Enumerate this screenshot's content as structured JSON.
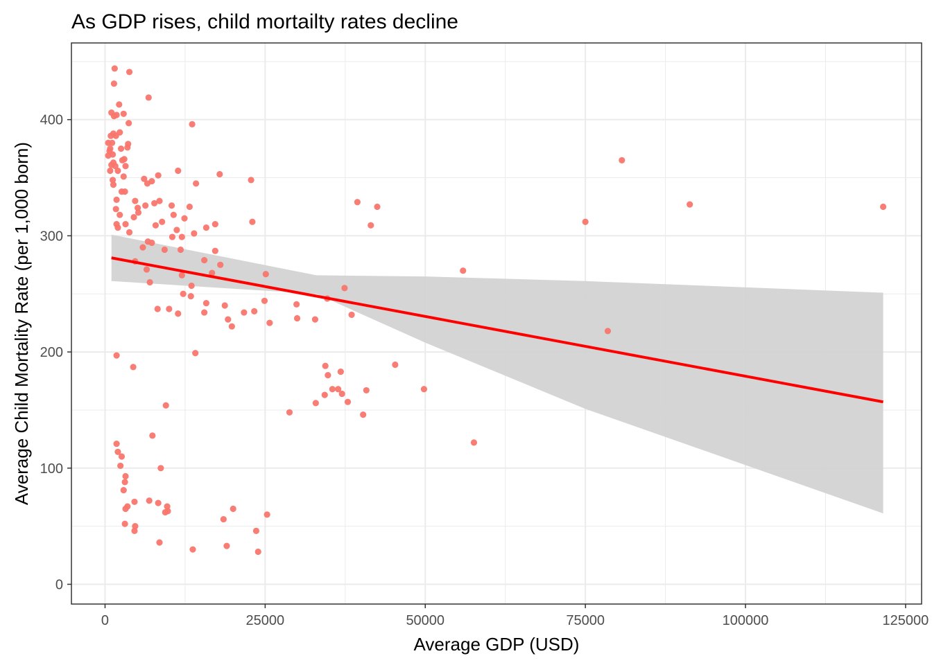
{
  "chart_data": {
    "type": "scatter",
    "title": "As GDP rises, child mortailty rates decline",
    "xlabel": "Average GDP (USD)",
    "ylabel": "Average Child Mortality Rate (per 1,000 born)",
    "xlim": [
      -5250,
      127500
    ],
    "ylim": [
      -17,
      466
    ],
    "x_ticks": [
      0,
      25000,
      50000,
      75000,
      100000,
      125000
    ],
    "x_tick_labels": [
      "0",
      "25000",
      "50000",
      "75000",
      "100000",
      "125000"
    ],
    "y_ticks": [
      0,
      100,
      200,
      300,
      400
    ],
    "y_tick_labels": [
      "0",
      "100",
      "200",
      "300",
      "400"
    ],
    "x_minor_ticks": [
      12500,
      37500,
      62500,
      87500,
      112500
    ],
    "y_minor_ticks": [
      50,
      150,
      250,
      350,
      450
    ],
    "grid": true,
    "legend": "none",
    "colors": {
      "points": "#F8766D",
      "trend_line": "#FF0000",
      "confidence_band": "#D3D3D3",
      "grid": "#EBEBEB",
      "panel_border": "#333333"
    },
    "trend": {
      "method": "linear",
      "x": [
        1000,
        121500
      ],
      "y": [
        281,
        157
      ],
      "ci_upper": [
        301,
        266,
        265,
        261,
        251
      ],
      "ci_lower": [
        261,
        250,
        208,
        151,
        61
      ],
      "ci_x": [
        1000,
        33000,
        50000,
        75000,
        121500
      ]
    },
    "series": [
      {
        "points": [
          [
            1500,
            444
          ],
          [
            3800,
            441
          ],
          [
            1400,
            431
          ],
          [
            6800,
            419
          ],
          [
            1000,
            406
          ],
          [
            1800,
            404
          ],
          [
            2900,
            405
          ],
          [
            2200,
            413
          ],
          [
            1400,
            403
          ],
          [
            3700,
            397
          ],
          [
            13600,
            396
          ],
          [
            900,
            386
          ],
          [
            1300,
            388
          ],
          [
            1700,
            386
          ],
          [
            2300,
            389
          ],
          [
            1100,
            380
          ],
          [
            500,
            380
          ],
          [
            800,
            375
          ],
          [
            2500,
            375
          ],
          [
            3600,
            379
          ],
          [
            700,
            373
          ],
          [
            3500,
            376
          ],
          [
            1200,
            370
          ],
          [
            3000,
            366
          ],
          [
            2700,
            365
          ],
          [
            500,
            369
          ],
          [
            1300,
            363
          ],
          [
            2000,
            356
          ],
          [
            3200,
            360
          ],
          [
            1000,
            361
          ],
          [
            800,
            356
          ],
          [
            1600,
            360
          ],
          [
            2900,
            351
          ],
          [
            1200,
            348
          ],
          [
            6100,
            349
          ],
          [
            8300,
            352
          ],
          [
            11400,
            356
          ],
          [
            17900,
            353
          ],
          [
            22800,
            348
          ],
          [
            1300,
            344
          ],
          [
            6600,
            345
          ],
          [
            7300,
            347
          ],
          [
            14200,
            345
          ],
          [
            2600,
            338
          ],
          [
            3100,
            338
          ],
          [
            1800,
            331
          ],
          [
            4700,
            330
          ],
          [
            8500,
            330
          ],
          [
            7700,
            328
          ],
          [
            1700,
            323
          ],
          [
            5100,
            324
          ],
          [
            6300,
            326
          ],
          [
            10400,
            326
          ],
          [
            13200,
            325
          ],
          [
            39400,
            329
          ],
          [
            42500,
            325
          ],
          [
            2300,
            318
          ],
          [
            4500,
            316
          ],
          [
            5200,
            320
          ],
          [
            7900,
            309
          ],
          [
            8900,
            312
          ],
          [
            10700,
            318
          ],
          [
            12400,
            315
          ],
          [
            23000,
            312
          ],
          [
            17200,
            310
          ],
          [
            1800,
            310
          ],
          [
            3200,
            310
          ],
          [
            2000,
            307
          ],
          [
            3800,
            303
          ],
          [
            11200,
            305
          ],
          [
            13900,
            302
          ],
          [
            15800,
            307
          ],
          [
            41500,
            309
          ],
          [
            6700,
            295
          ],
          [
            7300,
            294
          ],
          [
            9300,
            288
          ],
          [
            10500,
            299
          ],
          [
            12000,
            299
          ],
          [
            5900,
            290
          ],
          [
            11800,
            288
          ],
          [
            17200,
            287
          ],
          [
            4700,
            278
          ],
          [
            15500,
            279
          ],
          [
            18000,
            275
          ],
          [
            55900,
            270
          ],
          [
            6500,
            271
          ],
          [
            12000,
            266
          ],
          [
            16700,
            268
          ],
          [
            25100,
            267
          ],
          [
            7000,
            260
          ],
          [
            13500,
            257
          ],
          [
            13400,
            248
          ],
          [
            12200,
            250
          ],
          [
            37400,
            255
          ],
          [
            34700,
            246
          ],
          [
            29900,
            241
          ],
          [
            24900,
            244
          ],
          [
            15800,
            242
          ],
          [
            18700,
            240
          ],
          [
            8200,
            237
          ],
          [
            10000,
            237
          ],
          [
            11400,
            233
          ],
          [
            15500,
            234
          ],
          [
            21700,
            234
          ],
          [
            23300,
            235
          ],
          [
            38500,
            232
          ],
          [
            19200,
            228
          ],
          [
            25700,
            225
          ],
          [
            30000,
            229
          ],
          [
            32800,
            228
          ],
          [
            19800,
            222
          ],
          [
            78500,
            218
          ],
          [
            1800,
            197
          ],
          [
            14100,
            199
          ],
          [
            4400,
            187
          ],
          [
            45300,
            189
          ],
          [
            34400,
            188
          ],
          [
            34800,
            180
          ],
          [
            36800,
            183
          ],
          [
            35500,
            168
          ],
          [
            36400,
            168
          ],
          [
            34300,
            163
          ],
          [
            37000,
            164
          ],
          [
            49800,
            168
          ],
          [
            40800,
            167
          ],
          [
            9500,
            154
          ],
          [
            32900,
            156
          ],
          [
            37900,
            157
          ],
          [
            40300,
            146
          ],
          [
            28800,
            148
          ],
          [
            7400,
            128
          ],
          [
            57600,
            122
          ],
          [
            1800,
            121
          ],
          [
            2000,
            114
          ],
          [
            2600,
            110
          ],
          [
            2400,
            102
          ],
          [
            8700,
            100
          ],
          [
            3200,
            93
          ],
          [
            3100,
            88
          ],
          [
            2900,
            81
          ],
          [
            4600,
            71
          ],
          [
            6900,
            72
          ],
          [
            8300,
            70
          ],
          [
            9700,
            67
          ],
          [
            3500,
            67
          ],
          [
            3200,
            65
          ],
          [
            9800,
            63
          ],
          [
            9400,
            62
          ],
          [
            20000,
            65
          ],
          [
            25300,
            60
          ],
          [
            18500,
            56
          ],
          [
            3100,
            52
          ],
          [
            4700,
            50
          ],
          [
            4600,
            46
          ],
          [
            23600,
            46
          ],
          [
            8500,
            36
          ],
          [
            19000,
            33
          ],
          [
            13700,
            30
          ],
          [
            23900,
            28
          ],
          [
            75000,
            312
          ],
          [
            80700,
            365
          ],
          [
            91300,
            327
          ],
          [
            121500,
            325
          ]
        ]
      }
    ]
  }
}
